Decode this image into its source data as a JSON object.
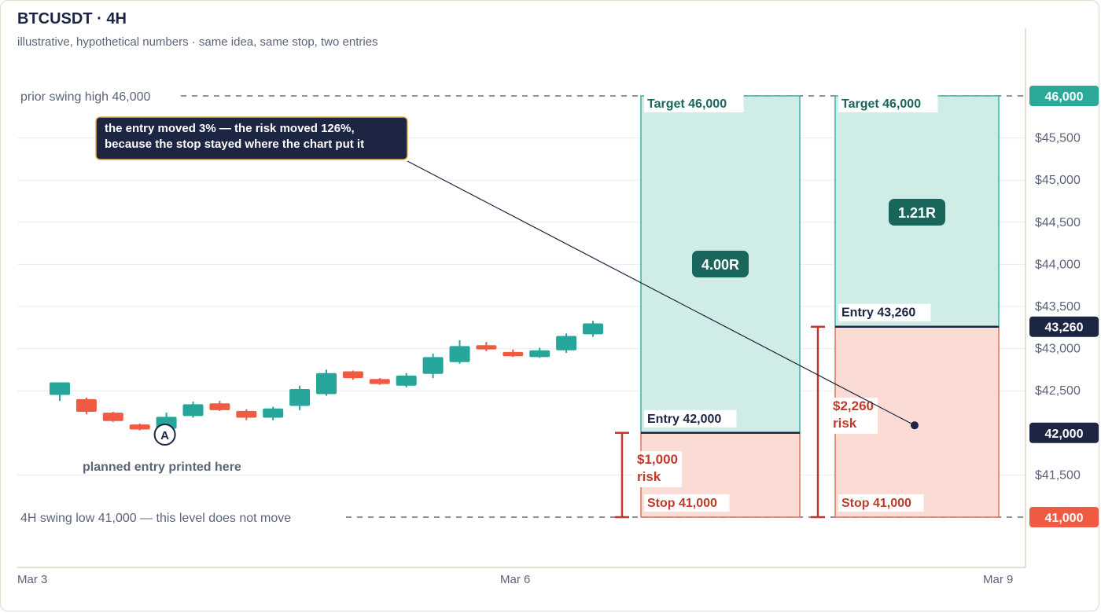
{
  "header": {
    "title": "BTCUSDT · 4H",
    "subtitle": "illustrative, hypothetical numbers · same idea, same stop, two entries"
  },
  "colors": {
    "bull": "#26a69a",
    "bear": "#ef5a43",
    "navy": "#1c2541",
    "target_fill": "#d0ece7",
    "stop_fill": "#fadcd5",
    "risk_text": "#c0392b",
    "r_badge": "#18665c",
    "axis_text": "#5b6478"
  },
  "chart_data": {
    "type": "candlestick",
    "symbol": "BTCUSDT",
    "timeframe": "4H",
    "x_ticks": [
      "Mar 3",
      "Mar 6",
      "Mar 9"
    ],
    "y_ticks": [
      {
        "value": 45500,
        "label": "$45,500"
      },
      {
        "value": 45000,
        "label": "$45,000"
      },
      {
        "value": 44500,
        "label": "$44,500"
      },
      {
        "value": 44000,
        "label": "$44,000"
      },
      {
        "value": 43500,
        "label": "$43,500"
      },
      {
        "value": 43000,
        "label": "$43,000"
      },
      {
        "value": 42500,
        "label": "$42,500"
      },
      {
        "value": 41500,
        "label": "$41,500"
      }
    ],
    "ylim": [
      40400,
      46600
    ],
    "price_tags": [
      {
        "value": 46000,
        "label": "46,000",
        "style": "target"
      },
      {
        "value": 43260,
        "label": "43,260",
        "style": "entry"
      },
      {
        "value": 42000,
        "label": "42,000",
        "style": "entry"
      },
      {
        "value": 41000,
        "label": "41,000",
        "style": "stop"
      }
    ],
    "candles": [
      {
        "o": 42450,
        "h": 42600,
        "l": 42380,
        "c": 42600
      },
      {
        "o": 42400,
        "h": 42420,
        "l": 42220,
        "c": 42250
      },
      {
        "o": 42240,
        "h": 42250,
        "l": 42130,
        "c": 42140
      },
      {
        "o": 42100,
        "h": 42110,
        "l": 42030,
        "c": 42040
      },
      {
        "o": 42050,
        "h": 42240,
        "l": 42030,
        "c": 42190
      },
      {
        "o": 42200,
        "h": 42370,
        "l": 42180,
        "c": 42340
      },
      {
        "o": 42350,
        "h": 42380,
        "l": 42260,
        "c": 42270
      },
      {
        "o": 42260,
        "h": 42280,
        "l": 42150,
        "c": 42180
      },
      {
        "o": 42180,
        "h": 42310,
        "l": 42150,
        "c": 42290
      },
      {
        "o": 42320,
        "h": 42560,
        "l": 42270,
        "c": 42520
      },
      {
        "o": 42460,
        "h": 42750,
        "l": 42440,
        "c": 42710
      },
      {
        "o": 42730,
        "h": 42740,
        "l": 42630,
        "c": 42650
      },
      {
        "o": 42640,
        "h": 42650,
        "l": 42570,
        "c": 42580
      },
      {
        "o": 42560,
        "h": 42710,
        "l": 42540,
        "c": 42680
      },
      {
        "o": 42700,
        "h": 42940,
        "l": 42650,
        "c": 42900
      },
      {
        "o": 42840,
        "h": 43100,
        "l": 42820,
        "c": 43030
      },
      {
        "o": 43040,
        "h": 43080,
        "l": 42970,
        "c": 42990
      },
      {
        "o": 42960,
        "h": 42990,
        "l": 42900,
        "c": 42910
      },
      {
        "o": 42900,
        "h": 43010,
        "l": 42890,
        "c": 42980
      },
      {
        "o": 42980,
        "h": 43180,
        "l": 42950,
        "c": 43150
      },
      {
        "o": 43170,
        "h": 43330,
        "l": 43140,
        "c": 43300
      }
    ],
    "levels": [
      {
        "value": 46000,
        "label": "prior swing high  46,000"
      },
      {
        "value": 41000,
        "label": "4H swing low  41,000  —  this level does not move"
      }
    ],
    "positions": [
      {
        "entry": 42000,
        "stop": 41000,
        "target": 46000,
        "target_label": "Target 46,000",
        "entry_label": "Entry 42,000",
        "stop_label": "Stop 41,000",
        "r_multiple": "4.00R",
        "risk_label_1": "$1,000",
        "risk_label_2": "risk"
      },
      {
        "entry": 43260,
        "stop": 41000,
        "target": 46000,
        "target_label": "Target 46,000",
        "entry_label": "Entry 43,260",
        "stop_label": "Stop 41,000",
        "r_multiple": "1.21R",
        "risk_label_1": "$2,260",
        "risk_label_2": "risk"
      }
    ],
    "markers": [
      {
        "candle_index": 4,
        "value": 42000,
        "letter": "A",
        "note": "planned entry printed here"
      }
    ],
    "callout": {
      "line1": "the entry moved 3% — the risk moved 126%,",
      "line2": "because the stop stayed where the chart put it",
      "anchor_value": 42090
    }
  }
}
